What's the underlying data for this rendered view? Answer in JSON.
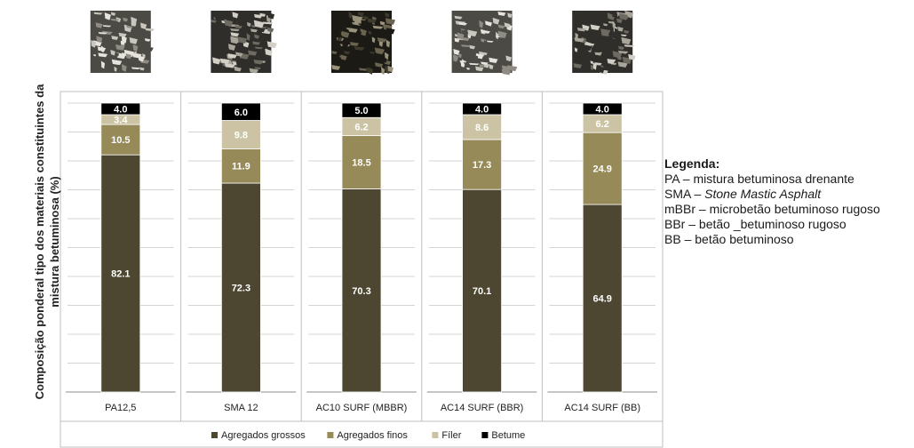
{
  "chart_data": {
    "type": "bar",
    "stacked": true,
    "ylabel": "Composição ponderal tipo dos materiais constituintes da mistura betuminosa (%)",
    "ylim": [
      0,
      100
    ],
    "grid": true,
    "categories": [
      "PA12,5",
      "SMA 12",
      "AC10 SURF (MBBR)",
      "AC14 SURF (BBR)",
      "AC14 SURF (BB)"
    ],
    "series": [
      {
        "name": "Agregados grossos",
        "color": "#4d4630",
        "values": [
          82.1,
          72.3,
          70.3,
          70.1,
          64.9
        ]
      },
      {
        "name": "Agregados finos",
        "color": "#968a58",
        "values": [
          10.5,
          11.9,
          18.5,
          17.3,
          24.9
        ]
      },
      {
        "name": "Fíler",
        "color": "#cbc3a3",
        "values": [
          3.4,
          9.8,
          6.2,
          8.6,
          6.2
        ]
      },
      {
        "name": "Betume",
        "color": "#000000",
        "values": [
          4.0,
          6.0,
          5.0,
          4.0,
          4.0
        ]
      }
    ],
    "legend_position": "bottom"
  },
  "images": [
    {
      "name": "pa-texture",
      "tone": "light"
    },
    {
      "name": "sma-texture",
      "tone": "mid"
    },
    {
      "name": "mbbr-texture",
      "tone": "dark"
    },
    {
      "name": "bbr-texture",
      "tone": "light"
    },
    {
      "name": "bb-texture",
      "tone": "mid"
    }
  ],
  "legend_text": {
    "title": "Legenda:",
    "items": [
      {
        "abbr": "PA",
        "sep": " – ",
        "desc": "mistura betuminosa drenante",
        "italic": false
      },
      {
        "abbr": "SMA",
        "sep": " – ",
        "desc": "Stone Mastic Asphalt",
        "italic": true
      },
      {
        "abbr": "mBBr",
        "sep": " – ",
        "desc": "microbetão betuminoso rugoso",
        "italic": false
      },
      {
        "abbr": "BBr",
        "sep": " – ",
        "desc": "betão _betuminoso rugoso",
        "italic": false
      },
      {
        "abbr": "BB",
        "sep": " – ",
        "desc": "betão betuminoso",
        "italic": false
      }
    ]
  }
}
